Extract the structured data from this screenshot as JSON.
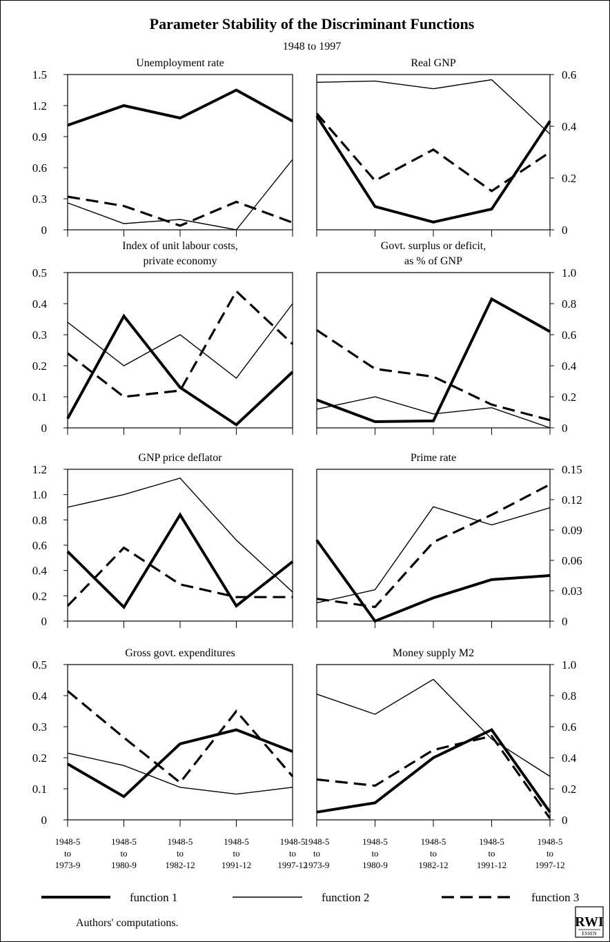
{
  "title": "Parameter Stability of the Discriminant Functions",
  "subtitle": "1948 to 1997",
  "source_note": "Authors' computations.",
  "logo": {
    "line1": "RWI",
    "line2": "ESSEN"
  },
  "x_categories": [
    [
      "1948-5",
      "to",
      "1973-9"
    ],
    [
      "1948-5",
      "to",
      "1980-9"
    ],
    [
      "1948-5",
      "to",
      "1982-12"
    ],
    [
      "1948-5",
      "to",
      "1991-12"
    ],
    [
      "1948-5",
      "to",
      "1997-12"
    ]
  ],
  "legend": [
    {
      "label": "function 1",
      "style": "thick"
    },
    {
      "label": "function 2",
      "style": "thin"
    },
    {
      "label": "function 3",
      "style": "dashed"
    }
  ],
  "chart_data": [
    {
      "type": "line",
      "title": "Unemployment rate",
      "axis_side": "left",
      "ylim": [
        0,
        1.5
      ],
      "yticks": [
        "0",
        "0.3",
        "0.6",
        "0.9",
        "1.2",
        "1.5"
      ],
      "series": [
        {
          "name": "function 1",
          "values": [
            1.01,
            1.2,
            1.08,
            1.35,
            1.05
          ]
        },
        {
          "name": "function 2",
          "values": [
            0.26,
            0.06,
            0.1,
            0.0,
            0.68
          ]
        },
        {
          "name": "function 3",
          "values": [
            0.32,
            0.23,
            0.04,
            0.27,
            0.07
          ]
        }
      ]
    },
    {
      "type": "line",
      "title": "Real GNP",
      "axis_side": "right",
      "ylim": [
        0,
        0.6
      ],
      "yticks": [
        "0",
        "0.2",
        "0.4",
        "0.6"
      ],
      "series": [
        {
          "name": "function 1",
          "values": [
            0.44,
            0.09,
            0.03,
            0.08,
            0.42
          ]
        },
        {
          "name": "function 2",
          "values": [
            0.57,
            0.575,
            0.545,
            0.58,
            0.37
          ]
        },
        {
          "name": "function 3",
          "values": [
            0.45,
            0.19,
            0.31,
            0.15,
            0.3
          ]
        }
      ]
    },
    {
      "type": "line",
      "title": "Index of unit labour costs, private economy",
      "title_lines": [
        "Index of unit labour costs,",
        "private economy"
      ],
      "axis_side": "left",
      "ylim": [
        0,
        0.5
      ],
      "yticks": [
        "0",
        "0.1",
        "0.2",
        "0.3",
        "0.4",
        "0.5"
      ],
      "series": [
        {
          "name": "function 1",
          "values": [
            0.03,
            0.36,
            0.13,
            0.01,
            0.18
          ]
        },
        {
          "name": "function 2",
          "values": [
            0.34,
            0.2,
            0.3,
            0.16,
            0.4
          ]
        },
        {
          "name": "function 3",
          "values": [
            0.24,
            0.1,
            0.12,
            0.44,
            0.27
          ]
        }
      ]
    },
    {
      "type": "line",
      "title": "Govt. surplus or deficit, as % of GNP",
      "title_lines": [
        "Govt. surplus or deficit,",
        "as % of GNP"
      ],
      "axis_side": "right",
      "ylim": [
        0,
        1.0
      ],
      "yticks": [
        "0",
        "0.2",
        "0.4",
        "0.6",
        "0.8",
        "1.0"
      ],
      "series": [
        {
          "name": "function 1",
          "values": [
            0.18,
            0.04,
            0.045,
            0.83,
            0.62
          ]
        },
        {
          "name": "function 2",
          "values": [
            0.12,
            0.2,
            0.09,
            0.13,
            0.0
          ]
        },
        {
          "name": "function 3",
          "values": [
            0.63,
            0.38,
            0.33,
            0.15,
            0.05
          ]
        }
      ]
    },
    {
      "type": "line",
      "title": "GNP price deflator",
      "axis_side": "left",
      "ylim": [
        0,
        1.2
      ],
      "yticks": [
        "0",
        "0.2",
        "0.4",
        "0.6",
        "0.8",
        "1.0",
        "1.2"
      ],
      "series": [
        {
          "name": "function 1",
          "values": [
            0.55,
            0.11,
            0.84,
            0.12,
            0.47
          ]
        },
        {
          "name": "function 2",
          "values": [
            0.9,
            1.0,
            1.13,
            0.64,
            0.23
          ]
        },
        {
          "name": "function 3",
          "values": [
            0.12,
            0.58,
            0.29,
            0.19,
            0.19
          ]
        }
      ]
    },
    {
      "type": "line",
      "title": "Prime rate",
      "axis_side": "right",
      "ylim": [
        0,
        0.15
      ],
      "yticks": [
        "0",
        "0.03",
        "0.06",
        "0.09",
        "0.12",
        "0.15"
      ],
      "series": [
        {
          "name": "function 1",
          "values": [
            0.08,
            0.0,
            0.023,
            0.041,
            0.045
          ]
        },
        {
          "name": "function 2",
          "values": [
            0.018,
            0.031,
            0.113,
            0.095,
            0.112
          ]
        },
        {
          "name": "function 3",
          "values": [
            0.022,
            0.014,
            0.078,
            0.105,
            0.135
          ]
        }
      ]
    },
    {
      "type": "line",
      "title": "Gross govt. expenditures",
      "axis_side": "left",
      "ylim": [
        0,
        0.5
      ],
      "yticks": [
        "0",
        "0.1",
        "0.2",
        "0.3",
        "0.4",
        "0.5"
      ],
      "series": [
        {
          "name": "function 1",
          "values": [
            0.18,
            0.075,
            0.245,
            0.29,
            0.22
          ]
        },
        {
          "name": "function 2",
          "values": [
            0.215,
            0.175,
            0.105,
            0.083,
            0.105
          ]
        },
        {
          "name": "function 3",
          "values": [
            0.415,
            0.265,
            0.12,
            0.35,
            0.14
          ]
        }
      ]
    },
    {
      "type": "line",
      "title": "Money supply M2",
      "axis_side": "right",
      "ylim": [
        0,
        1.0
      ],
      "yticks": [
        "0",
        "0.2",
        "0.4",
        "0.6",
        "0.8",
        "1.0"
      ],
      "series": [
        {
          "name": "function 1",
          "values": [
            0.05,
            0.11,
            0.4,
            0.58,
            0.05
          ]
        },
        {
          "name": "function 2",
          "values": [
            0.81,
            0.68,
            0.905,
            0.52,
            0.28
          ]
        },
        {
          "name": "function 3",
          "values": [
            0.26,
            0.22,
            0.45,
            0.54,
            0.01
          ]
        }
      ]
    }
  ]
}
